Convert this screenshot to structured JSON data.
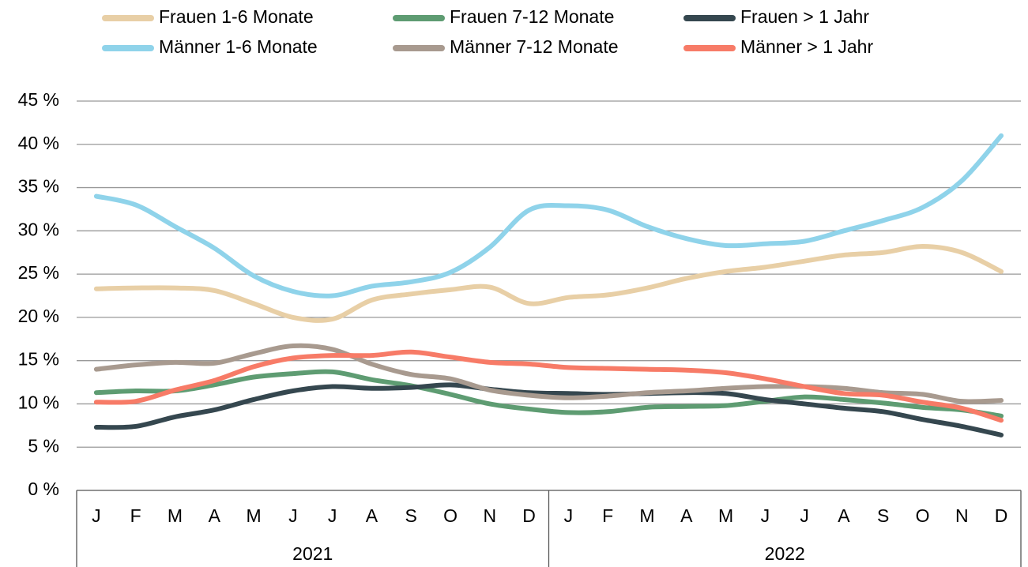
{
  "chart_data": {
    "type": "line",
    "categories": [
      "J",
      "F",
      "M",
      "A",
      "M",
      "J",
      "J",
      "A",
      "S",
      "O",
      "N",
      "D",
      "J",
      "F",
      "M",
      "A",
      "M",
      "J",
      "J",
      "A",
      "S",
      "O",
      "N",
      "D"
    ],
    "groups": [
      "2021",
      "2022"
    ],
    "series": [
      {
        "name": "Frauen 1-6 Monate",
        "color": "#e8cfa6",
        "values": [
          23.3,
          23.4,
          23.4,
          23.1,
          21.6,
          20,
          19.8,
          22,
          22.7,
          23.2,
          23.5,
          21.6,
          22.3,
          22.6,
          23.4,
          24.5,
          25.3,
          25.8,
          26.5,
          27.2,
          27.5,
          28.2,
          27.5,
          25.3
        ]
      },
      {
        "name": "Frauen 7-12 Monate",
        "color": "#5e9c72",
        "values": [
          11.3,
          11.5,
          11.5,
          12.2,
          13.1,
          13.5,
          13.7,
          12.8,
          12.1,
          11.1,
          10,
          9.4,
          9,
          9.1,
          9.6,
          9.7,
          9.8,
          10.3,
          10.8,
          10.5,
          10.1,
          9.6,
          9.3,
          8.6
        ]
      },
      {
        "name": "Frauen > 1 Jahr",
        "color": "#35474f",
        "values": [
          7.3,
          7.4,
          8.5,
          9.3,
          10.5,
          11.5,
          12,
          11.8,
          11.9,
          12.2,
          11.7,
          11.3,
          11.2,
          11.1,
          11.2,
          11.3,
          11.2,
          10.5,
          10,
          9.5,
          9.1,
          8.2,
          7.4,
          6.4
        ]
      },
      {
        "name": "Männer 1-6 Monate",
        "color": "#8fd3ea",
        "values": [
          34,
          33,
          30.5,
          28,
          24.8,
          23,
          22.5,
          23.6,
          24.1,
          25.2,
          28.1,
          32.4,
          32.9,
          32.4,
          30.5,
          29.1,
          28.3,
          28.5,
          28.8,
          30,
          31.2,
          32.7,
          35.8,
          41
        ]
      },
      {
        "name": "Männer 7-12 Monate",
        "color": "#a89a8f",
        "values": [
          14,
          14.5,
          14.8,
          14.7,
          15.8,
          16.7,
          16.3,
          14.6,
          13.4,
          12.9,
          11.6,
          11,
          10.7,
          10.9,
          11.3,
          11.5,
          11.8,
          12,
          12,
          11.8,
          11.3,
          11.1,
          10.3,
          10.4
        ]
      },
      {
        "name": "Männer > 1 Jahr",
        "color": "#f77b67",
        "values": [
          10.2,
          10.3,
          11.6,
          12.7,
          14.3,
          15.3,
          15.6,
          15.6,
          16,
          15.4,
          14.8,
          14.6,
          14.2,
          14.1,
          14,
          13.9,
          13.6,
          12.9,
          12,
          11.2,
          11,
          10.2,
          9.5,
          8.1
        ]
      }
    ],
    "ylim": [
      0,
      45
    ],
    "yticks": [
      {
        "value": 0,
        "label": "0 %"
      },
      {
        "value": 5,
        "label": "5 %"
      },
      {
        "value": 10,
        "label": "10 %"
      },
      {
        "value": 15,
        "label": "15 %"
      },
      {
        "value": 20,
        "label": "20 %"
      },
      {
        "value": 25,
        "label": "25 %"
      },
      {
        "value": 30,
        "label": "30 %"
      },
      {
        "value": 35,
        "label": "35 %"
      },
      {
        "value": 40,
        "label": "40 %"
      },
      {
        "value": 45,
        "label": "45 %"
      }
    ],
    "grid": true
  }
}
